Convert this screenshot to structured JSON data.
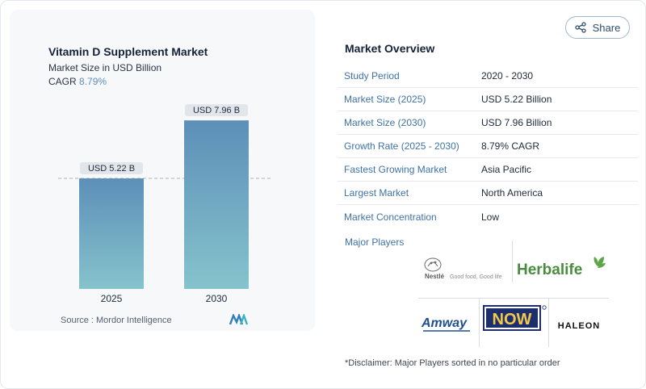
{
  "share": {
    "label": "Share",
    "icon": "share-icon"
  },
  "chart": {
    "title": "Vitamin D Supplement Market",
    "subtitle": "Market Size in USD Billion",
    "cagr_label": "CAGR",
    "cagr_value": "8.79%",
    "source": "Source :  Mordor Intelligence",
    "bar_labels": [
      "USD 5.22 B",
      "USD 7.96 B"
    ]
  },
  "chart_data": {
    "type": "bar",
    "title": "Vitamin D Supplement Market",
    "subtitle": "Market Size in USD Billion",
    "categories": [
      "2025",
      "2030"
    ],
    "values": [
      5.22,
      7.96
    ],
    "data_labels": [
      "USD 5.22 B",
      "USD 7.96 B"
    ],
    "xlabel": "",
    "ylabel": "",
    "ylim": [
      0,
      8.5
    ],
    "reference_line": 5.22,
    "bar_color_top": "#5d8fb8",
    "bar_color_bottom": "#86c3cc",
    "grid": false
  },
  "overview": {
    "title": "Market Overview",
    "rows": [
      {
        "label": "Study Period",
        "value": "2020 - 2030"
      },
      {
        "label": "Market Size (2025)",
        "value": "USD 5.22 Billion"
      },
      {
        "label": "Market Size (2030)",
        "value": "USD 7.96 Billion"
      },
      {
        "label": "Growth Rate (2025 - 2030)",
        "value": "8.79% CAGR"
      },
      {
        "label": "Fastest Growing Market",
        "value": "Asia Pacific"
      },
      {
        "label": "Largest Market",
        "value": "North America"
      },
      {
        "label": "Market Concentration",
        "value": "Low"
      }
    ]
  },
  "players": {
    "title": "Major Players",
    "logos": {
      "nestle": {
        "name": "Nestlé",
        "tagline": "Good food, Good life"
      },
      "herbalife": {
        "name": "Herbalife"
      },
      "amway": {
        "name": "Amway"
      },
      "now": {
        "name": "NOW"
      },
      "haleon": {
        "name": "HALEON"
      }
    }
  },
  "disclaimer": "*Disclaimer: Major Players sorted in no particular order"
}
